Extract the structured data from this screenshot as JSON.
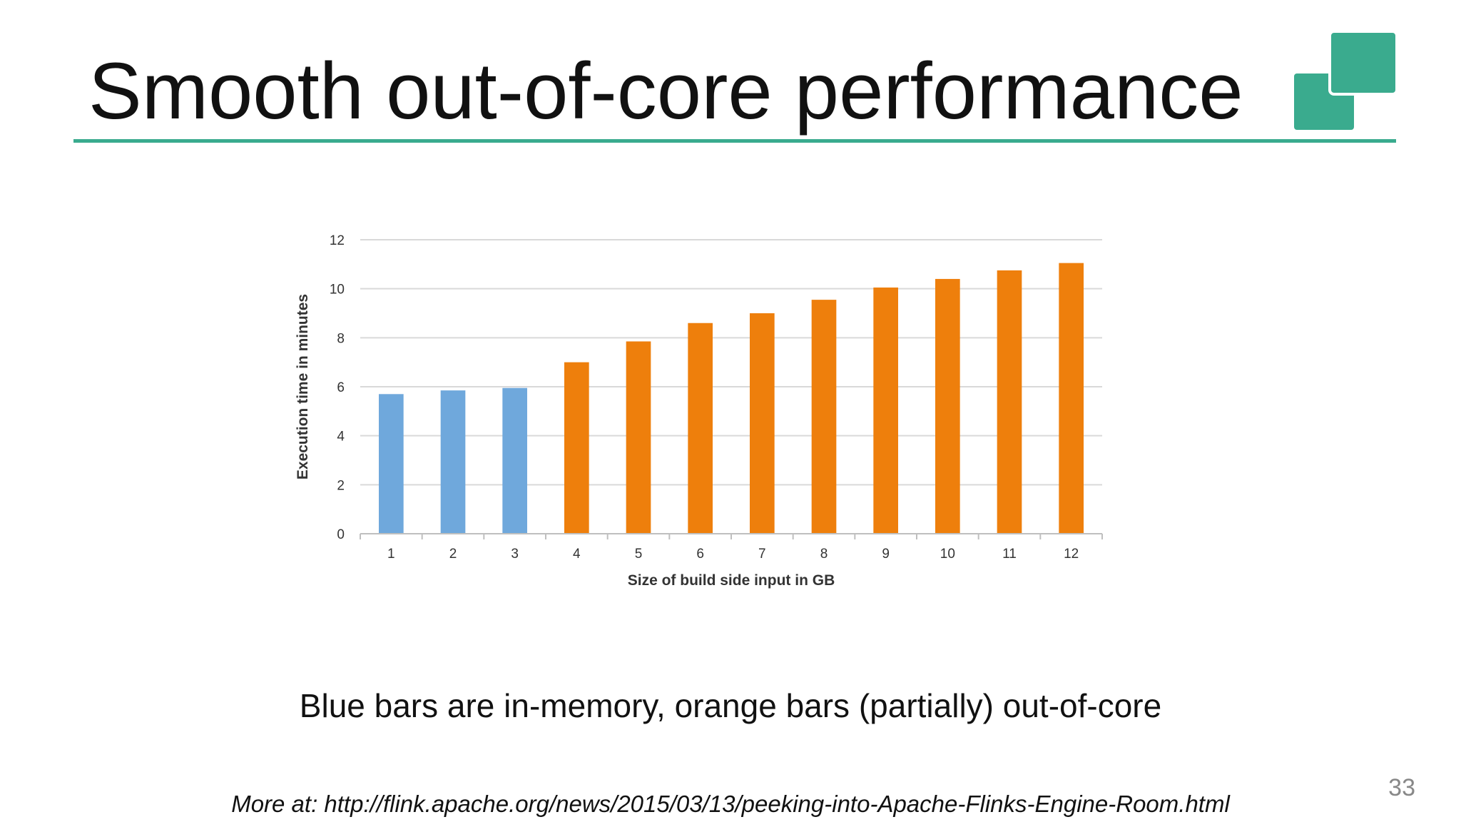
{
  "slide": {
    "title": "Smooth out-of-core performance",
    "caption": "Blue bars are in-memory, orange bars (partially) out-of-core",
    "source_note": "More at: http://flink.apache.org/news/2015/03/13/peeking-into-Apache-Flinks-Engine-Room.html",
    "page_number": "33"
  },
  "colors": {
    "accent": "#3aab8e",
    "in_memory": "#6fa8dc",
    "out_of_core": "#ee7f0c",
    "grid": "#d9d9d9"
  },
  "chart_data": {
    "type": "bar",
    "xlabel": "Size of build side input in GB",
    "ylabel": "Execution time in minutes",
    "ylim": [
      0,
      12
    ],
    "yticks": [
      "0",
      "2",
      "4",
      "6",
      "8",
      "10",
      "12"
    ],
    "grid": true,
    "categories": [
      "1",
      "2",
      "3",
      "4",
      "5",
      "6",
      "7",
      "8",
      "9",
      "10",
      "11",
      "12"
    ],
    "values": [
      5.7,
      5.85,
      5.95,
      7.0,
      7.85,
      8.6,
      9.0,
      9.55,
      10.05,
      10.4,
      10.75,
      11.05
    ],
    "bar_groups": [
      "in-memory",
      "in-memory",
      "in-memory",
      "out-of-core",
      "out-of-core",
      "out-of-core",
      "out-of-core",
      "out-of-core",
      "out-of-core",
      "out-of-core",
      "out-of-core",
      "out-of-core"
    ]
  }
}
